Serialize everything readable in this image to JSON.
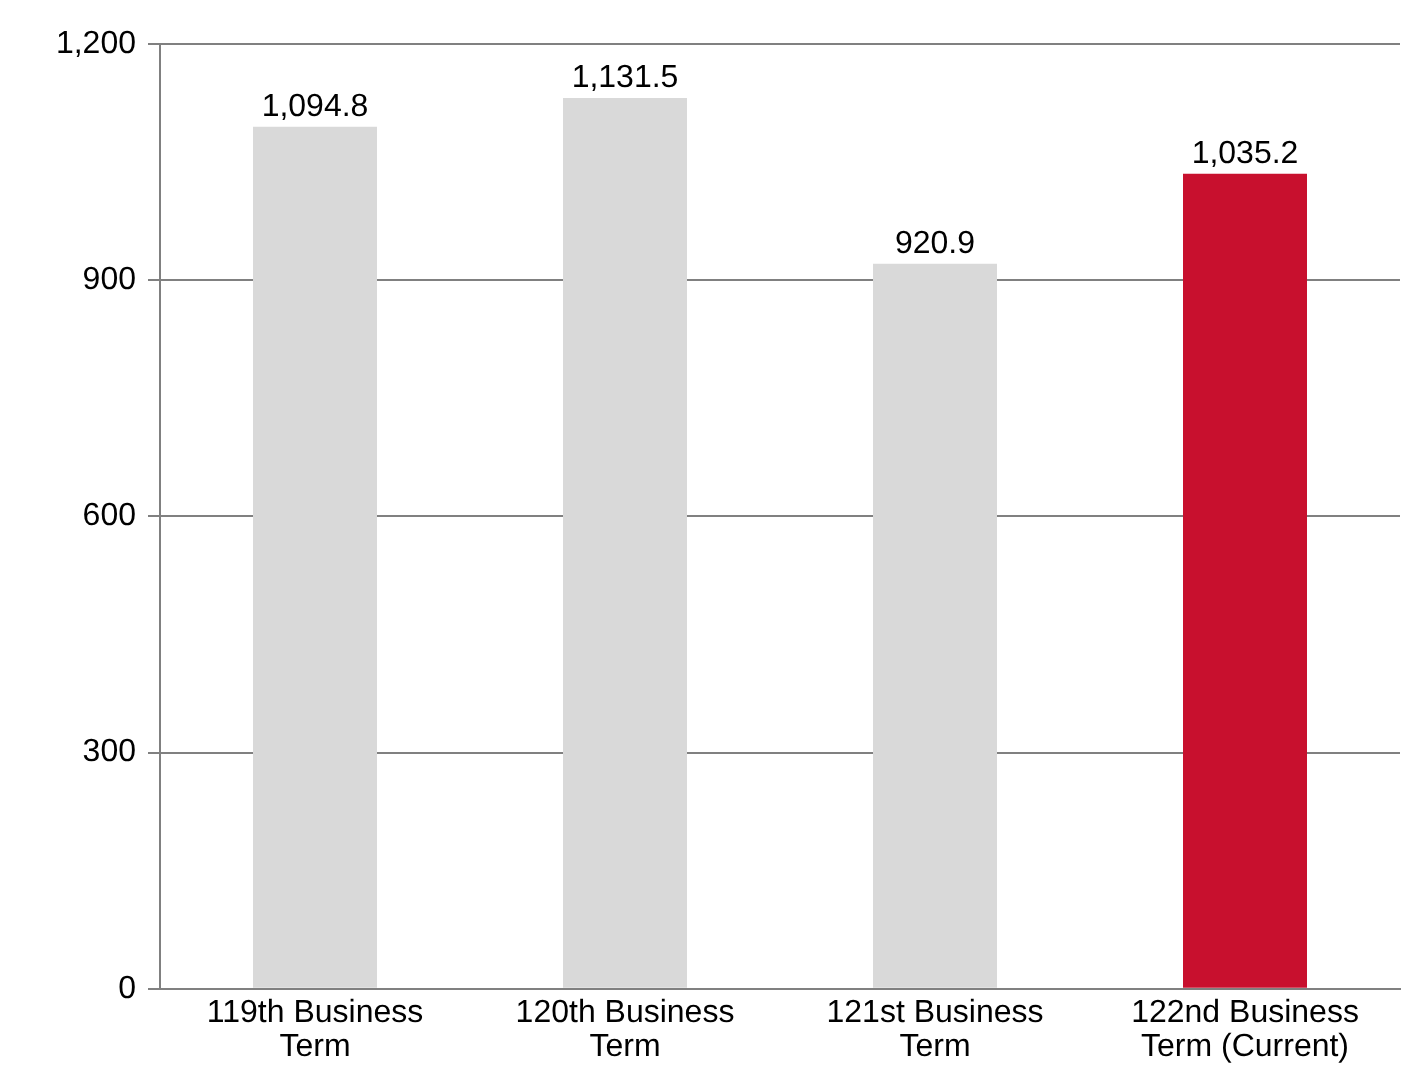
{
  "chart_data": {
    "type": "bar",
    "categories": [
      "119th Business Term",
      "120th Business Term",
      "121st Business Term",
      "122nd Business Term (Current)"
    ],
    "values": [
      1094.8,
      1131.5,
      920.9,
      1035.2
    ],
    "colors": [
      "#d9d9d9",
      "#d9d9d9",
      "#d9d9d9",
      "#c8102e"
    ],
    "value_labels": [
      "1,094.8",
      "1,131.5",
      "920.9",
      "1,035.2"
    ],
    "ylim": [
      0,
      1200
    ],
    "yticks": [
      0,
      300,
      600,
      900,
      {
        "value": 1200,
        "label": "1,200"
      }
    ],
    "grid": "y"
  }
}
